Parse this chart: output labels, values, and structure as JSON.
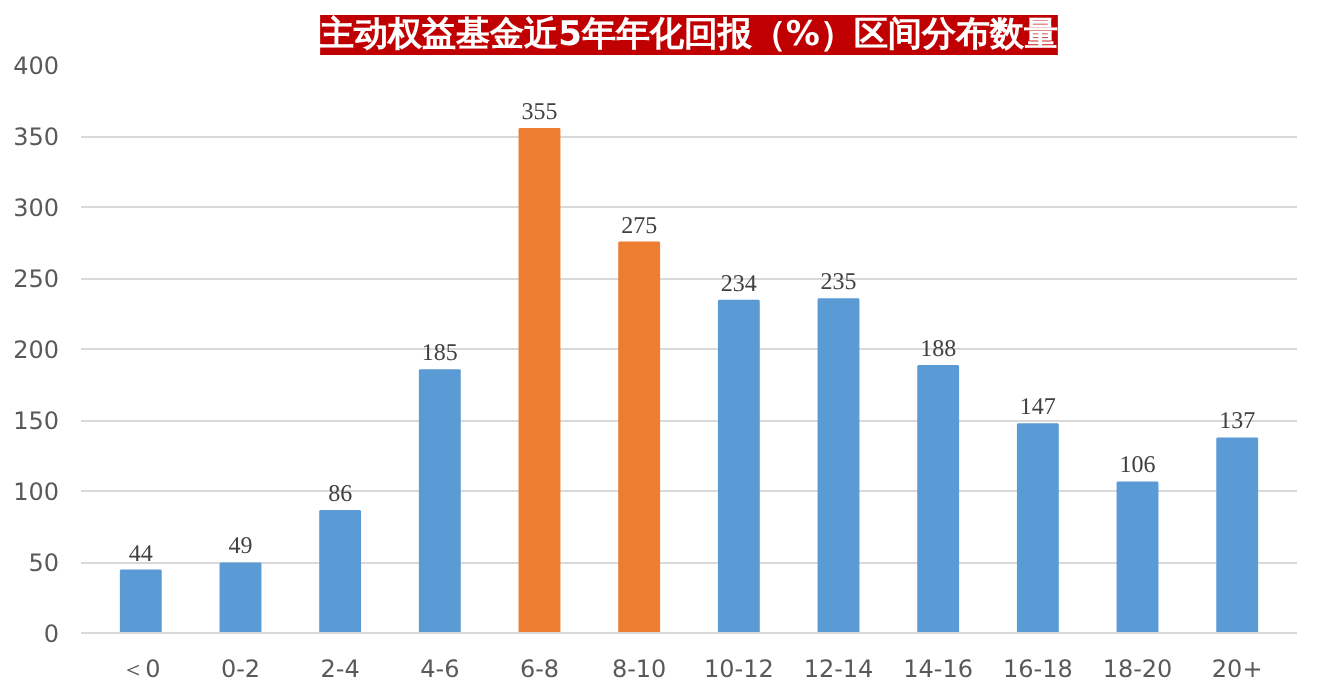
{
  "chart_data": {
    "type": "bar",
    "title": "主动权益基金近5年年化回报（%）区间分布数量",
    "categories": [
      "＜0",
      "0-2",
      "2-4",
      "4-6",
      "6-8",
      "8-10",
      "10-12",
      "12-14",
      "14-16",
      "16-18",
      "18-20",
      "20+"
    ],
    "values": [
      44,
      49,
      86,
      185,
      355,
      275,
      234,
      235,
      188,
      147,
      106,
      137
    ],
    "colors": [
      "#5b9bd5",
      "#5b9bd5",
      "#5b9bd5",
      "#5b9bd5",
      "#ed7d31",
      "#ed7d31",
      "#5b9bd5",
      "#5b9bd5",
      "#5b9bd5",
      "#5b9bd5",
      "#5b9bd5",
      "#5b9bd5"
    ],
    "ylim": [
      0,
      400
    ],
    "yticks": [
      0,
      50,
      100,
      150,
      200,
      250,
      300,
      350,
      400
    ],
    "grid": "y",
    "data_labels": true
  }
}
